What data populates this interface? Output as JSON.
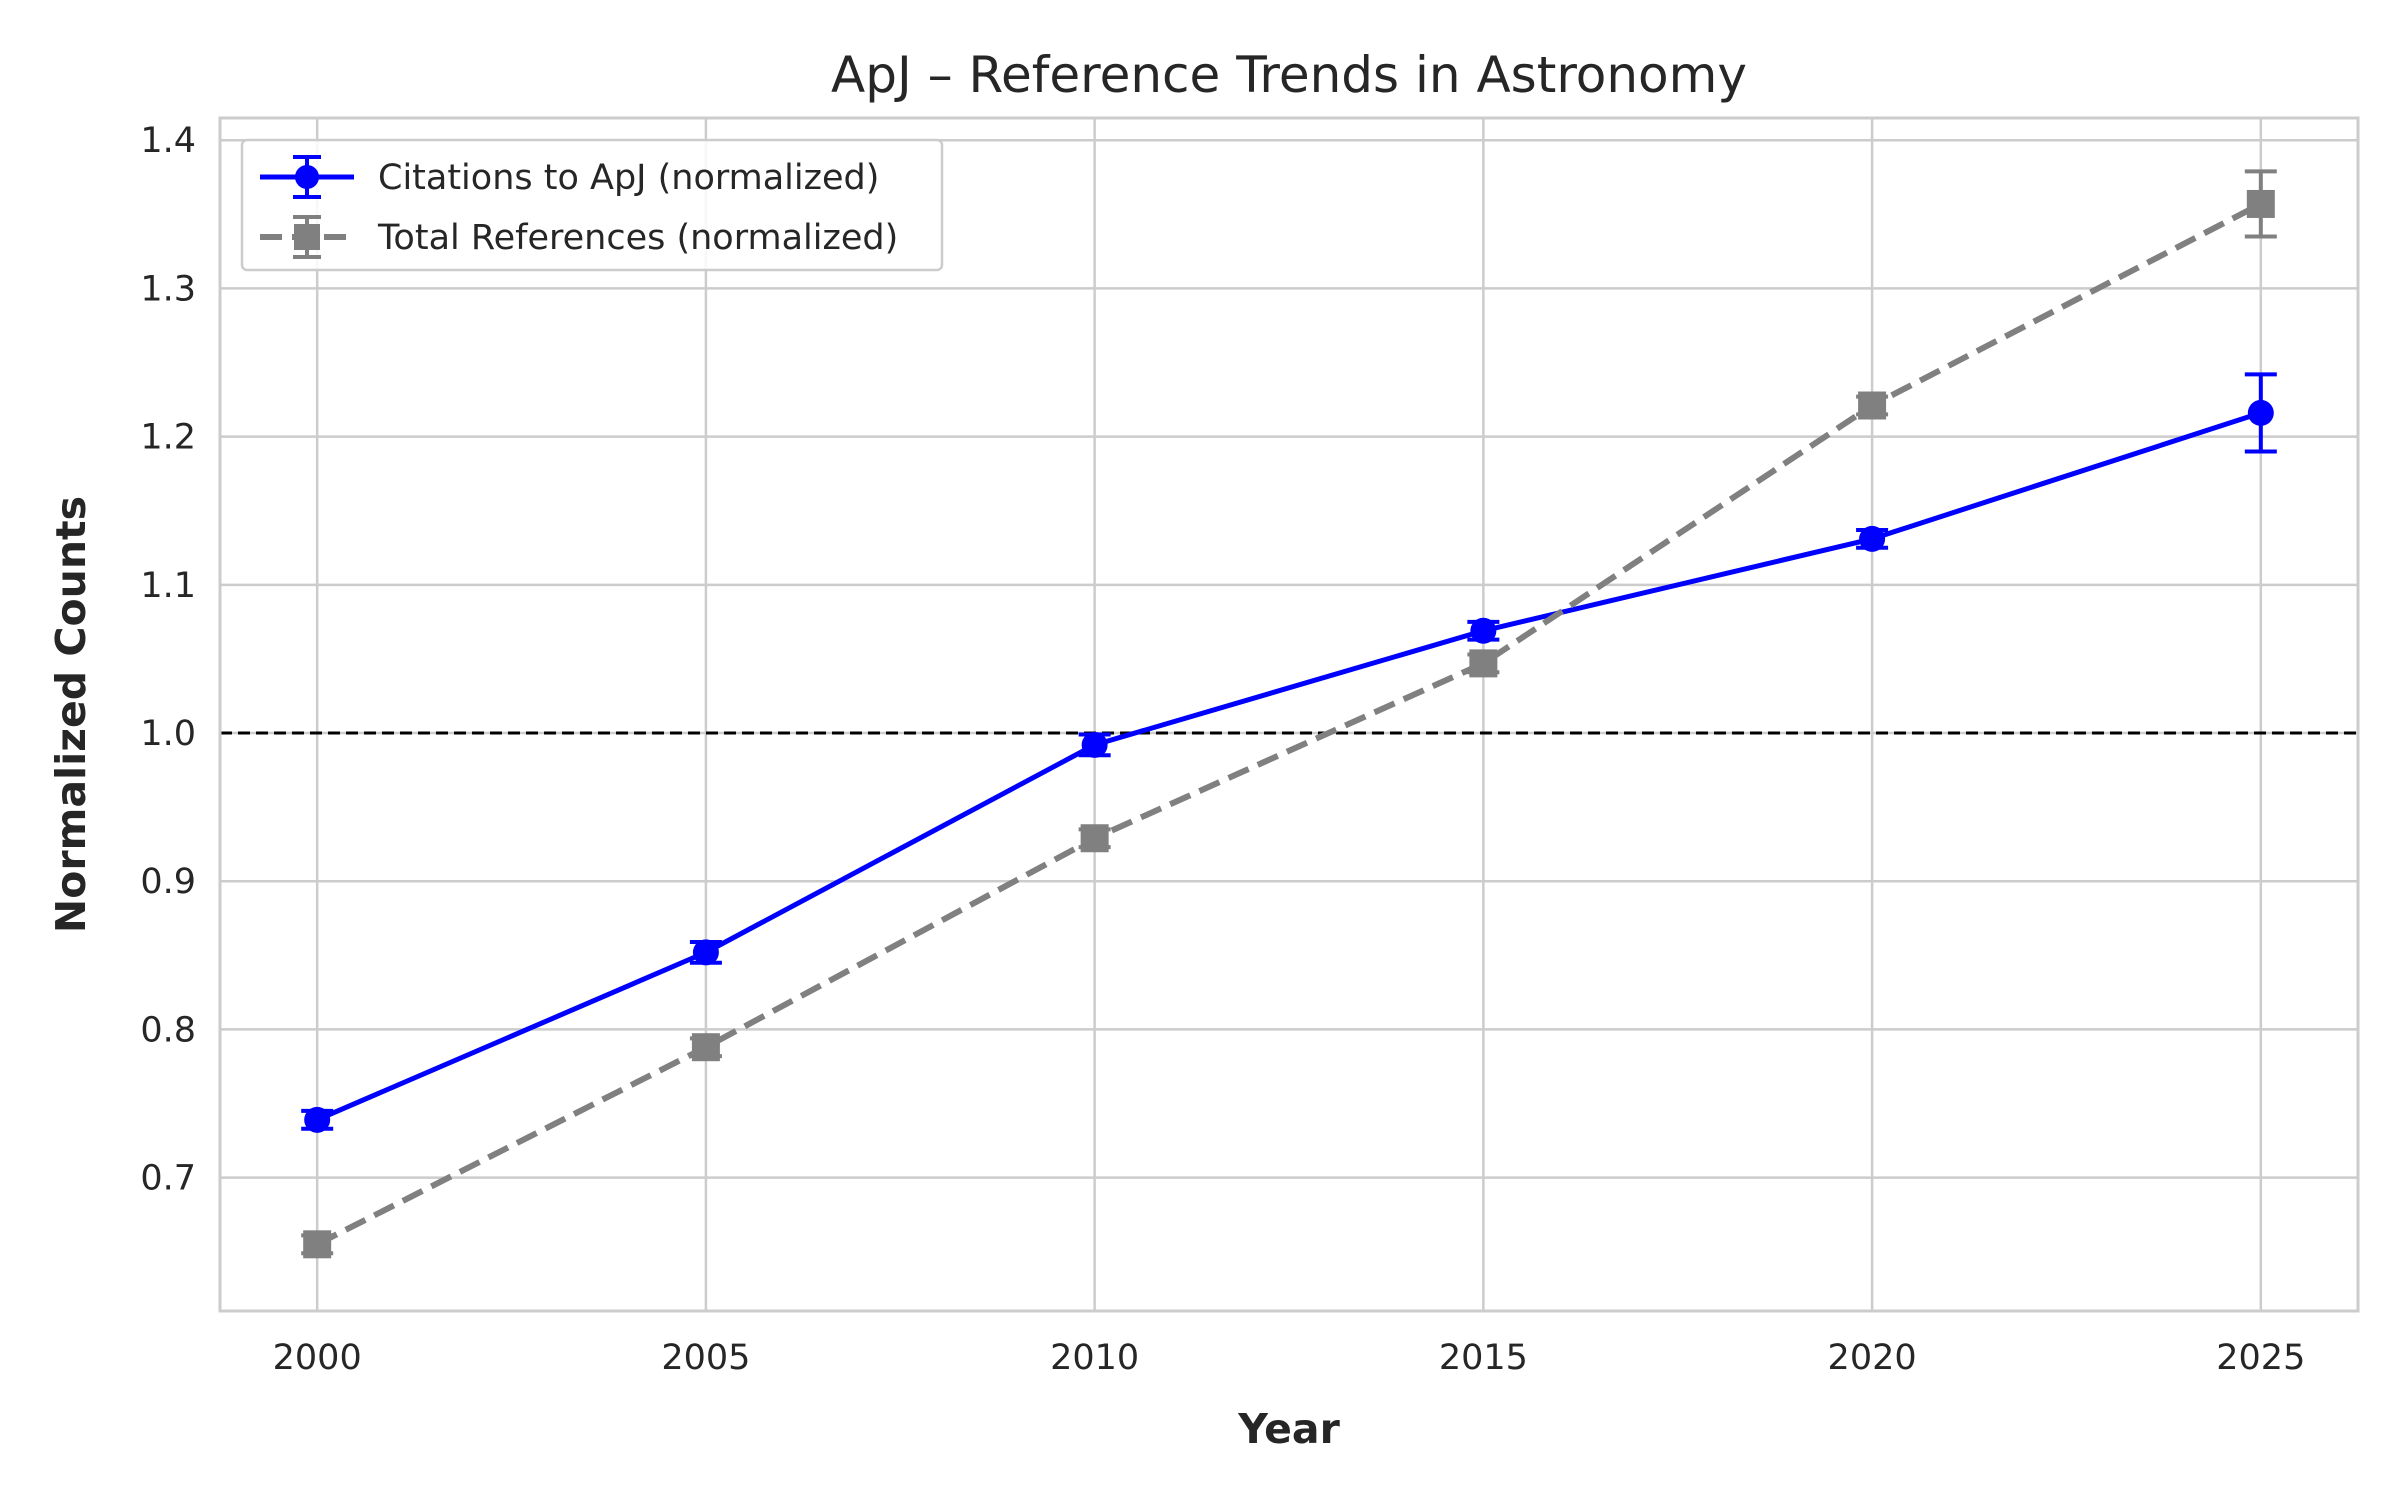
{
  "chart_data": {
    "type": "line",
    "title": "ApJ – Reference Trends in Astronomy",
    "xlabel": "Year",
    "ylabel": "Normalized Counts",
    "x": [
      2000,
      2005,
      2010,
      2015,
      2020,
      2025
    ],
    "xlim": [
      1998.75,
      2026.25
    ],
    "ylim": [
      0.61,
      1.415
    ],
    "x_ticks": [
      "2000",
      "2005",
      "2010",
      "2015",
      "2020",
      "2025"
    ],
    "y_ticks": [
      "0.7",
      "0.8",
      "0.9",
      "1.0",
      "1.1",
      "1.2",
      "1.3",
      "1.4"
    ],
    "grid": true,
    "legend_position": "upper-left",
    "reference_line": {
      "y": 1.0,
      "style": "dashed",
      "color": "#000000"
    },
    "series": [
      {
        "name": "Citations to ApJ (normalized)",
        "values": [
          0.739,
          0.852,
          0.992,
          1.069,
          1.131,
          1.216
        ],
        "errors": [
          0.006,
          0.007,
          0.007,
          0.006,
          0.006,
          0.026
        ],
        "color": "#0000ff",
        "marker": "circle",
        "line_style": "solid"
      },
      {
        "name": "Total References (normalized)",
        "values": [
          0.655,
          0.788,
          0.929,
          1.047,
          1.221,
          1.357
        ],
        "errors": [
          0.006,
          0.006,
          0.006,
          0.006,
          0.006,
          0.022
        ],
        "color": "#808080",
        "marker": "square",
        "line_style": "dashed"
      }
    ]
  }
}
